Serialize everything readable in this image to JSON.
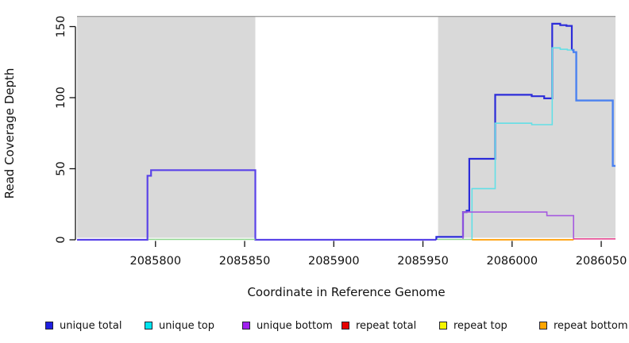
{
  "figure": {
    "x_axis_title": "Coordinate in Reference Genome",
    "y_axis_title": "Read Coverage Depth",
    "background_color": "#ffffff",
    "masked_region_color": "#d9d9d9",
    "top_boundary_line_color": "#9e9e9e"
  },
  "chart_data": {
    "type": "line",
    "subtype": "step-coverage-plot",
    "title": "",
    "xlabel": "Coordinate in Reference Genome",
    "ylabel": "Read Coverage Depth",
    "xlim": [
      2085756,
      2086058
    ],
    "ylim": [
      0,
      157
    ],
    "x_ticks": [
      2085800,
      2085850,
      2085900,
      2085950,
      2086000,
      2086050
    ],
    "y_ticks": [
      0,
      50,
      100,
      150
    ],
    "grid": false,
    "shaded_regions": [
      {
        "name": "masked-region-1",
        "x0": 2085756,
        "x1": 2085856
      },
      {
        "name": "masked-region-2",
        "x0": 2085958.5,
        "x1": 2086058
      }
    ],
    "legend_position": "bottom",
    "series": [
      {
        "name": "unique total",
        "legend_color": "#1f1fe0",
        "paths": [
          {
            "color": "#5a43e8",
            "w": 2.2,
            "points": [
              [
                2085756,
                0
              ],
              [
                2085795.5,
                0
              ],
              [
                2085795.5,
                45
              ],
              [
                2085797.5,
                45
              ],
              [
                2085797.5,
                49
              ],
              [
                2085856,
                49
              ],
              [
                2085856,
                0
              ],
              [
                2085957.5,
                0
              ]
            ]
          },
          {
            "color": "#2c2cd9",
            "w": 2.2,
            "points": [
              [
                2085957.5,
                0
              ],
              [
                2085957.5,
                2
              ],
              [
                2085972.5,
                2
              ],
              [
                2085972.5,
                19.5
              ],
              [
                2085974.5,
                19.5
              ],
              [
                2085974.5,
                20.5
              ],
              [
                2085976,
                20.5
              ],
              [
                2085976,
                57
              ],
              [
                2085990.5,
                57
              ],
              [
                2085990.5,
                102
              ],
              [
                2086011,
                102
              ],
              [
                2086011,
                101
              ],
              [
                2086018,
                101
              ],
              [
                2086018,
                99.5
              ],
              [
                2086022.5,
                99.5
              ],
              [
                2086022.5,
                152
              ],
              [
                2086027,
                152
              ],
              [
                2086027,
                151
              ],
              [
                2086030.5,
                151
              ],
              [
                2086030.5,
                150.5
              ],
              [
                2086033.5,
                150.5
              ],
              [
                2086033.5,
                133.5
              ]
            ]
          },
          {
            "color": "#4b82f0",
            "w": 2.4,
            "points": [
              [
                2086033.5,
                133.5
              ],
              [
                2086034.5,
                133.5
              ],
              [
                2086034.5,
                132
              ],
              [
                2086036,
                132
              ],
              [
                2086036,
                98
              ],
              [
                2086056.5,
                98
              ],
              [
                2086056.5,
                52
              ],
              [
                2086058,
                52
              ]
            ]
          }
        ]
      },
      {
        "name": "unique top",
        "legend_color": "#00e5ee",
        "paths": [
          {
            "color": "#63dfe6",
            "w": 1.6,
            "points": [
              [
                2085977.5,
                0
              ],
              [
                2085977.5,
                36
              ],
              [
                2085990.5,
                36
              ],
              [
                2085990.5,
                82
              ],
              [
                2086011,
                82
              ],
              [
                2086011,
                81
              ],
              [
                2086022.5,
                81
              ],
              [
                2086022.5,
                135
              ],
              [
                2086027,
                135
              ],
              [
                2086027,
                134
              ],
              [
                2086031,
                134
              ],
              [
                2086031,
                133.5
              ],
              [
                2086033.5,
                133.5
              ]
            ]
          }
        ]
      },
      {
        "name": "unique bottom",
        "legend_color": "#a020f0",
        "paths": [
          {
            "color": "#a55ae0",
            "w": 1.6,
            "points": [
              [
                2085972.5,
                0
              ],
              [
                2085972.5,
                19.5
              ],
              [
                2086019.5,
                19.5
              ],
              [
                2086019.5,
                17
              ],
              [
                2086034.5,
                17
              ],
              [
                2086034.5,
                0
              ]
            ]
          }
        ]
      },
      {
        "name": "repeat total",
        "legend_color": "#e60000",
        "paths": [
          {
            "color": "#e8559a",
            "w": 1.8,
            "points": [
              [
                2086034.5,
                0.6
              ],
              [
                2086058,
                0.6
              ]
            ]
          }
        ]
      },
      {
        "name": "repeat top",
        "legend_color": "#f5f500",
        "paths": [
          {
            "color": "#8fd68f",
            "w": 1.5,
            "points": [
              [
                2085796,
                0.3
              ],
              [
                2085856,
                0.3
              ]
            ]
          },
          {
            "color": "#8fd68f",
            "w": 1.5,
            "points": [
              [
                2085958,
                0.3
              ],
              [
                2085977.5,
                0.3
              ]
            ]
          }
        ]
      },
      {
        "name": "repeat bottom",
        "legend_color": "#ffa500",
        "paths": [
          {
            "color": "#ff9d00",
            "w": 1.8,
            "points": [
              [
                2085977.5,
                0
              ],
              [
                2086034.5,
                0
              ]
            ]
          }
        ]
      }
    ]
  },
  "legend": {
    "items": [
      {
        "label": "unique total",
        "color": "#1f1fe0"
      },
      {
        "label": "unique top",
        "color": "#00e5ee"
      },
      {
        "label": "unique bottom",
        "color": "#a020f0"
      },
      {
        "label": "repeat total",
        "color": "#e60000"
      },
      {
        "label": "repeat top",
        "color": "#f5f500"
      },
      {
        "label": "repeat bottom",
        "color": "#ffa500"
      }
    ]
  }
}
